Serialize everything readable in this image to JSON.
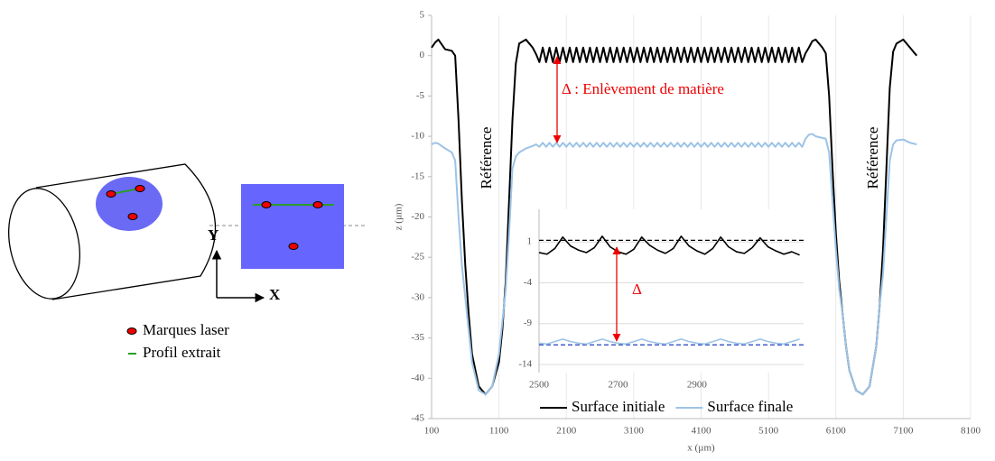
{
  "diagram": {
    "y_label": "Y",
    "x_label": "X",
    "legend": [
      "Marques laser",
      "Profil extrait"
    ]
  },
  "chart_data": [
    {
      "type": "line",
      "xlabel": "x (µm)",
      "ylabel": "z (µm)",
      "xlim": [
        100,
        8100
      ],
      "xticks": [
        100,
        1100,
        2100,
        3100,
        4100,
        5100,
        6100,
        7100,
        8100
      ],
      "ylim": [
        -45,
        5
      ],
      "yticks": [
        5,
        0,
        -5,
        -10,
        -15,
        -20,
        -25,
        -30,
        -35,
        -40,
        -45
      ],
      "grid": true,
      "legend": "bottom",
      "annotations": [
        "Δ : Enlèvement de matière",
        "Référence",
        "Référence"
      ],
      "x": [
        100,
        150,
        200,
        300,
        400,
        450,
        500,
        550,
        600,
        650,
        700,
        800,
        900,
        1000,
        1100,
        1150,
        1200,
        1250,
        1300,
        1350,
        1400,
        1500,
        1600,
        1650,
        1700,
        1750,
        1800,
        1850,
        1900,
        1950,
        2000,
        2050,
        2100,
        2150,
        2200,
        2250,
        2300,
        2350,
        2400,
        2450,
        2500,
        2550,
        2600,
        2650,
        2700,
        2750,
        2800,
        2850,
        2900,
        2950,
        3000,
        3050,
        3100,
        3150,
        3200,
        3250,
        3300,
        3350,
        3400,
        3450,
        3500,
        3550,
        3600,
        3650,
        3700,
        3750,
        3800,
        3850,
        3900,
        3950,
        4000,
        4050,
        4100,
        4150,
        4200,
        4250,
        4300,
        4350,
        4400,
        4450,
        4500,
        4550,
        4600,
        4650,
        4700,
        4750,
        4800,
        4850,
        4900,
        4950,
        5000,
        5050,
        5100,
        5150,
        5200,
        5250,
        5300,
        5350,
        5400,
        5450,
        5500,
        5550,
        5600,
        5650,
        5700,
        5750,
        5800,
        5900,
        5950,
        6000,
        6050,
        6100,
        6150,
        6200,
        6250,
        6300,
        6400,
        6500,
        6600,
        6700,
        6750,
        6800,
        6850,
        6900,
        6950,
        7000,
        7100,
        7200,
        7300
      ],
      "series": [
        {
          "name": "Surface initiale",
          "color": "#000000",
          "values": [
            1,
            1.6,
            2,
            0.8,
            0.6,
            0,
            -8,
            -18,
            -26,
            -32,
            -37,
            -41,
            -42,
            -41,
            -38,
            -34,
            -28,
            -18,
            -8,
            -1,
            1.5,
            2,
            1,
            0.2,
            -0.8,
            1,
            -0.8,
            1,
            -0.8,
            1,
            -0.8,
            1,
            -0.8,
            1,
            -0.8,
            1,
            -0.8,
            1,
            -0.8,
            1,
            -0.8,
            1,
            -0.8,
            1,
            -0.8,
            1,
            -0.8,
            1,
            -0.8,
            1,
            -0.8,
            1,
            -0.8,
            1,
            -0.8,
            1,
            -0.8,
            1,
            -0.8,
            1,
            -0.8,
            1,
            -0.8,
            1,
            -0.8,
            1,
            -0.8,
            1,
            -0.8,
            1,
            -0.8,
            1,
            -0.8,
            1,
            -0.8,
            1,
            -0.8,
            1,
            -0.8,
            1,
            -0.8,
            1,
            -0.8,
            1,
            -0.8,
            1,
            -0.8,
            1,
            -0.8,
            1,
            -0.8,
            1,
            -0.8,
            1,
            -0.8,
            1,
            -0.8,
            1,
            -0.8,
            1,
            -0.8,
            1,
            -0.8,
            0.3,
            1,
            1.8,
            2,
            1,
            0.3,
            -5,
            -14,
            -22,
            -28,
            -32,
            -36,
            -39,
            -41.5,
            -42,
            -41,
            -36,
            -31,
            -24,
            -14,
            -4,
            0.5,
            1.5,
            2,
            1,
            0
          ]
        },
        {
          "name": "Surface finale",
          "color": "#9dc3e6",
          "values": [
            -11,
            -10.8,
            -10.9,
            -11.5,
            -12,
            -13,
            -20,
            -26,
            -30,
            -34,
            -38,
            -41.5,
            -42,
            -41,
            -37,
            -33,
            -29,
            -22,
            -14,
            -12.5,
            -12,
            -11.5,
            -11.2,
            -11,
            -11.3,
            -10.8,
            -11.3,
            -10.8,
            -11.3,
            -10.8,
            -11.3,
            -10.8,
            -11.3,
            -10.8,
            -11.3,
            -10.8,
            -11.3,
            -10.8,
            -11.3,
            -10.8,
            -11.3,
            -10.8,
            -11.3,
            -10.8,
            -11.3,
            -10.8,
            -11.3,
            -10.8,
            -11.3,
            -10.8,
            -11.3,
            -10.8,
            -11.3,
            -10.8,
            -11.3,
            -10.8,
            -11.3,
            -10.8,
            -11.3,
            -10.8,
            -11.3,
            -10.8,
            -11.3,
            -10.8,
            -11.3,
            -10.8,
            -11.3,
            -10.8,
            -11.3,
            -10.8,
            -11.3,
            -10.8,
            -11.3,
            -10.8,
            -11.3,
            -10.8,
            -11.3,
            -10.8,
            -11.3,
            -10.8,
            -11.3,
            -10.8,
            -11.3,
            -10.8,
            -11.3,
            -10.8,
            -11.3,
            -10.8,
            -11.3,
            -10.8,
            -11.3,
            -10.8,
            -11.3,
            -10.8,
            -11.3,
            -10.8,
            -11.3,
            -10.8,
            -11.3,
            -10.8,
            -11.3,
            -10.8,
            -11.3,
            -10.3,
            -9.8,
            -9.7,
            -10,
            -10.2,
            -10.3,
            -12,
            -18,
            -24,
            -29,
            -32,
            -36,
            -39,
            -41.5,
            -42,
            -41,
            -36,
            -31,
            -27,
            -20,
            -13,
            -11,
            -10.5,
            -10.4,
            -10.8,
            -11
          ]
        }
      ]
    },
    {
      "type": "line",
      "xlim": [
        2500,
        3170
      ],
      "xticks": [
        2500,
        2700,
        2900
      ],
      "ylim": [
        -15,
        5
      ],
      "yticks": [
        1,
        -4,
        -9,
        -14
      ],
      "grid": "y",
      "annotations": [
        "Δ"
      ],
      "reference_lines": [
        {
          "value": 1.2,
          "color": "#000000"
        },
        {
          "value": -11.6,
          "color": "#1f3fbf"
        }
      ],
      "x": [
        2500,
        2520,
        2540,
        2560,
        2580,
        2600,
        2620,
        2640,
        2660,
        2680,
        2700,
        2720,
        2740,
        2760,
        2780,
        2800,
        2820,
        2840,
        2860,
        2880,
        2900,
        2920,
        2940,
        2960,
        2980,
        3000,
        3020,
        3040,
        3060,
        3080,
        3100,
        3120,
        3140,
        3160
      ],
      "series": [
        {
          "color": "#000000",
          "values": [
            -0.3,
            -0.5,
            0.2,
            1.6,
            0.5,
            0,
            -0.3,
            0.3,
            1.7,
            0.4,
            -0.2,
            -0.5,
            0.1,
            1.6,
            0.6,
            0,
            -0.4,
            0.2,
            1.7,
            0.5,
            -0.1,
            -0.5,
            0.2,
            1.6,
            0.4,
            -0.2,
            -0.4,
            0.3,
            1.5,
            0.4,
            -0.1,
            -0.5,
            -0.2,
            -0.6
          ]
        },
        {
          "color": "#9dc3e6",
          "values": [
            -11.4,
            -11.5,
            -11.2,
            -10.9,
            -11.2,
            -11.4,
            -11.5,
            -11.2,
            -10.9,
            -11.2,
            -11.4,
            -11.5,
            -11.2,
            -10.9,
            -11.2,
            -11.4,
            -11.5,
            -11.2,
            -10.9,
            -11.2,
            -11.4,
            -11.5,
            -11.2,
            -10.9,
            -11.2,
            -11.4,
            -11.5,
            -11.2,
            -10.9,
            -11.2,
            -11.4,
            -11.5,
            -11.2,
            -10.9
          ]
        }
      ]
    }
  ]
}
